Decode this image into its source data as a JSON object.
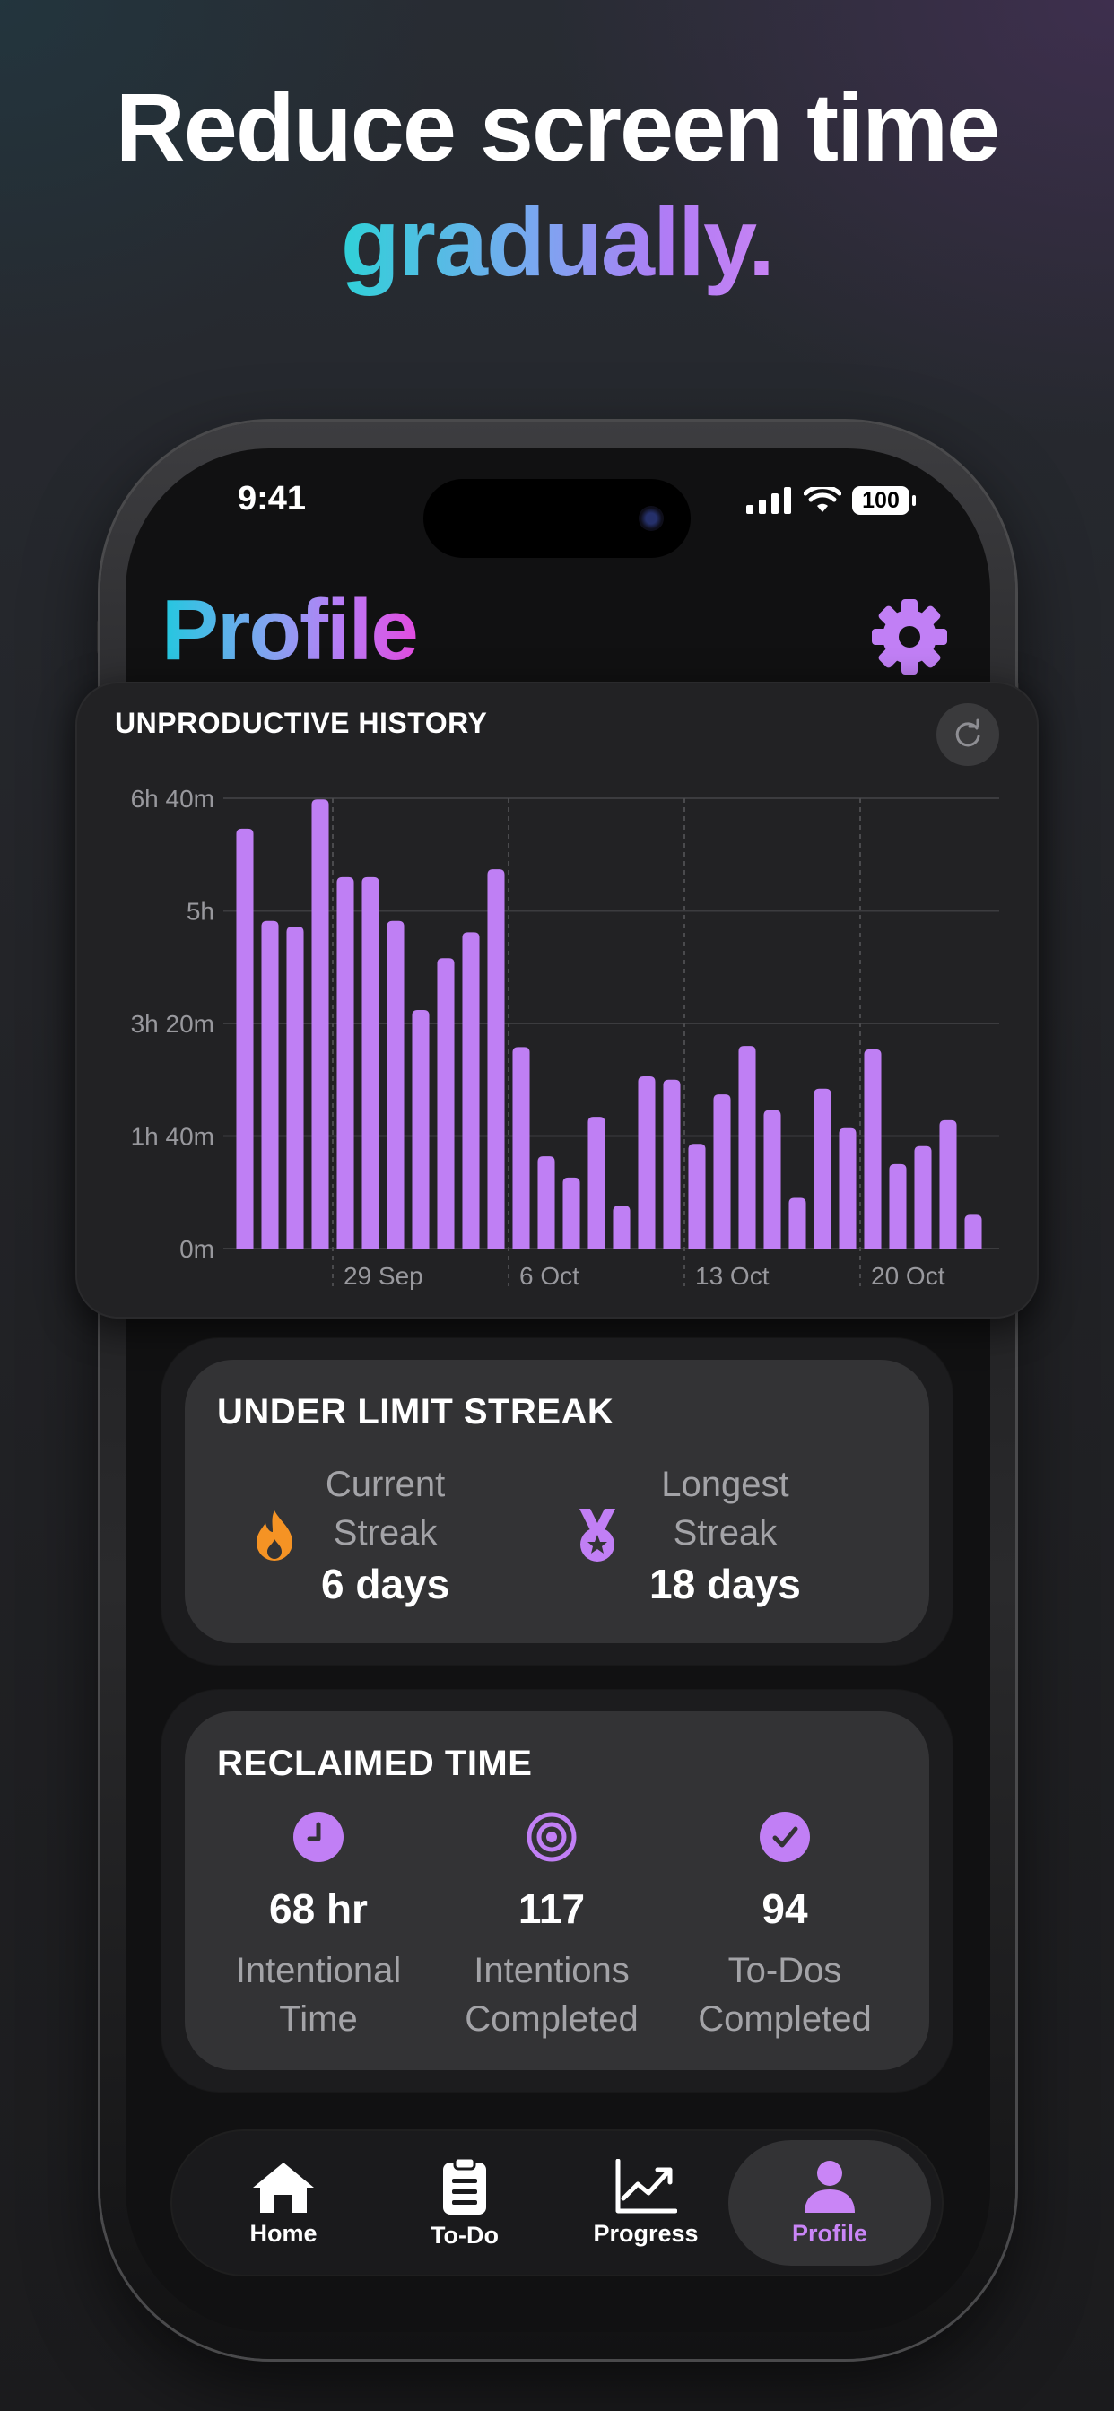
{
  "headline": {
    "line1": "Reduce screen time",
    "line2": "gradually."
  },
  "status_bar": {
    "time": "9:41",
    "battery": "100"
  },
  "page": {
    "title": "Profile"
  },
  "history": {
    "title": "UNPRODUCTIVE HISTORY",
    "colors": {
      "bar": "#bf7ff4"
    }
  },
  "chart_data": {
    "type": "bar",
    "title": "UNPRODUCTIVE HISTORY",
    "y_unit": "minutes",
    "ylim": [
      0,
      400
    ],
    "y_ticks": [
      {
        "value": 0,
        "label": "0m"
      },
      {
        "value": 100,
        "label": "1h 40m"
      },
      {
        "value": 200,
        "label": "3h 20m"
      },
      {
        "value": 300,
        "label": "5h"
      },
      {
        "value": 400,
        "label": "6h 40m"
      }
    ],
    "x_ticks": [
      {
        "index": 3.5,
        "label": "29 Sep"
      },
      {
        "index": 10.5,
        "label": "6 Oct"
      },
      {
        "index": 17.5,
        "label": "13 Oct"
      },
      {
        "index": 24.5,
        "label": "20 Oct"
      }
    ],
    "values": [
      373,
      291,
      286,
      399,
      330,
      330,
      291,
      212,
      258,
      281,
      337,
      179,
      82,
      63,
      117,
      38,
      153,
      150,
      93,
      137,
      180,
      123,
      45,
      142,
      107,
      177,
      75,
      91,
      114,
      30
    ],
    "grid": true
  },
  "streak": {
    "title": "UNDER LIMIT STREAK",
    "current_label_1": "Current",
    "current_label_2": "Streak",
    "current_value": "6 days",
    "longest_label_1": "Longest",
    "longest_label_2": "Streak",
    "longest_value": "18 days",
    "colors": {
      "flame": "#f59324",
      "medal": "#c17ff5"
    }
  },
  "reclaimed": {
    "title": "RECLAIMED TIME",
    "items": [
      {
        "icon": "clock-icon",
        "value": "68 hr",
        "label_1": "Intentional",
        "label_2": "Time"
      },
      {
        "icon": "target-icon",
        "value": "117",
        "label_1": "Intentions",
        "label_2": "Completed"
      },
      {
        "icon": "checkmark-icon",
        "value": "94",
        "label_1": "To-Dos",
        "label_2": "Completed"
      }
    ]
  },
  "tabs": [
    {
      "label": "Home",
      "icon": "home-icon"
    },
    {
      "label": "To-Do",
      "icon": "clipboard-icon"
    },
    {
      "label": "Progress",
      "icon": "chart-icon"
    },
    {
      "label": "Profile",
      "icon": "person-icon",
      "active": true
    }
  ],
  "colors": {
    "accent": "#c17ff5",
    "active_tab": "#c985f6"
  }
}
